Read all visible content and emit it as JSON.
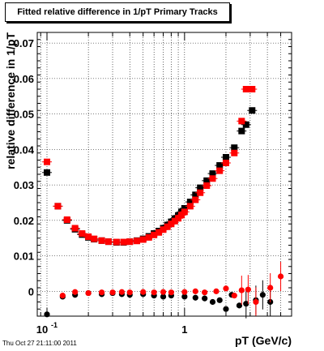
{
  "title": "Fitted relative difference in 1/pT  Primary Tracks",
  "timestamp": "Thu Oct 27 21:11:00 2011",
  "colors": {
    "black_series": "#000000",
    "red_series": "#ff0000",
    "frame": "#000000"
  },
  "chart_data": {
    "type": "scatter",
    "xlabel": "pT (GeV/c)",
    "ylabel": "relative difference in 1/pT",
    "x_scale": "log",
    "xlim": [
      0.085,
      6.0
    ],
    "ylim": [
      -0.007,
      0.073
    ],
    "grid": true,
    "x_tick_labels": [
      {
        "value": 0.1,
        "label": "10",
        "sup": "-1"
      },
      {
        "value": 1,
        "label": "1",
        "sup": ""
      }
    ],
    "y_tick_labels": [
      {
        "value": 0,
        "label": "0"
      },
      {
        "value": 0.01,
        "label": "0.01"
      },
      {
        "value": 0.02,
        "label": "0.02"
      },
      {
        "value": 0.03,
        "label": "0.03"
      },
      {
        "value": 0.04,
        "label": "0.04"
      },
      {
        "value": 0.05,
        "label": "0.05"
      },
      {
        "value": 0.06,
        "label": "0.06"
      },
      {
        "value": 0.07,
        "label": "0.07"
      }
    ],
    "series": [
      {
        "color": "#000000",
        "marker": "square",
        "points": [
          [
            0.1,
            0.0335
          ],
          [
            0.12,
            0.024
          ],
          [
            0.14,
            0.02
          ],
          [
            0.16,
            0.0175
          ],
          [
            0.18,
            0.016
          ],
          [
            0.2,
            0.0152
          ],
          [
            0.22,
            0.0147
          ],
          [
            0.25,
            0.0143
          ],
          [
            0.28,
            0.014
          ],
          [
            0.32,
            0.0138
          ],
          [
            0.36,
            0.0138
          ],
          [
            0.4,
            0.014
          ],
          [
            0.45,
            0.0143
          ],
          [
            0.5,
            0.0148
          ],
          [
            0.55,
            0.0155
          ],
          [
            0.6,
            0.0163
          ],
          [
            0.65,
            0.017
          ],
          [
            0.7,
            0.0178
          ],
          [
            0.75,
            0.0187
          ],
          [
            0.8,
            0.0196
          ],
          [
            0.85,
            0.0205
          ],
          [
            0.9,
            0.0214
          ],
          [
            0.95,
            0.0224
          ],
          [
            1.0,
            0.0234
          ],
          [
            1.1,
            0.0252
          ],
          [
            1.2,
            0.0272
          ],
          [
            1.3,
            0.0292
          ],
          [
            1.45,
            0.0312
          ],
          [
            1.6,
            0.0332
          ],
          [
            1.8,
            0.0355
          ],
          [
            2.0,
            0.0378
          ],
          [
            2.3,
            0.0405
          ],
          [
            2.6,
            0.0452
          ],
          [
            2.8,
            0.047
          ],
          [
            3.1,
            0.051
          ]
        ],
        "low_points": [
          [
            0.1,
            -0.0065
          ],
          [
            0.13,
            -0.0015
          ],
          [
            0.16,
            -0.001
          ],
          [
            0.2,
            -0.0005
          ],
          [
            0.25,
            -0.0008
          ],
          [
            0.3,
            -0.0005
          ],
          [
            0.35,
            -0.0008
          ],
          [
            0.4,
            -0.001
          ],
          [
            0.5,
            -0.0008
          ],
          [
            0.6,
            -0.0012
          ],
          [
            0.7,
            -0.0015
          ],
          [
            0.8,
            -0.0012
          ],
          [
            1.0,
            -0.0015
          ],
          [
            1.2,
            -0.0018
          ],
          [
            1.4,
            -0.002
          ],
          [
            1.6,
            -0.003
          ],
          [
            1.8,
            -0.0025
          ],
          [
            2.0,
            -0.005
          ],
          [
            2.2,
            -0.001
          ],
          [
            2.5,
            -0.004
          ],
          [
            2.8,
            -0.0035
          ],
          [
            3.3,
            -0.0025
          ],
          [
            3.7,
            -0.001
          ],
          [
            4.2,
            -0.003
          ]
        ]
      },
      {
        "color": "#ff0000",
        "marker": "square",
        "points": [
          [
            0.1,
            0.0365
          ],
          [
            0.12,
            0.024
          ],
          [
            0.14,
            0.0202
          ],
          [
            0.16,
            0.0178
          ],
          [
            0.18,
            0.0163
          ],
          [
            0.2,
            0.0154
          ],
          [
            0.22,
            0.0148
          ],
          [
            0.25,
            0.0143
          ],
          [
            0.28,
            0.014
          ],
          [
            0.32,
            0.0139
          ],
          [
            0.36,
            0.0139
          ],
          [
            0.4,
            0.014
          ],
          [
            0.45,
            0.0142
          ],
          [
            0.5,
            0.0146
          ],
          [
            0.55,
            0.0152
          ],
          [
            0.6,
            0.0159
          ],
          [
            0.65,
            0.0166
          ],
          [
            0.7,
            0.0174
          ],
          [
            0.75,
            0.0182
          ],
          [
            0.8,
            0.019
          ],
          [
            0.85,
            0.0198
          ],
          [
            0.9,
            0.0206
          ],
          [
            0.95,
            0.0215
          ],
          [
            1.0,
            0.0224
          ],
          [
            1.1,
            0.024
          ],
          [
            1.2,
            0.0258
          ],
          [
            1.3,
            0.0278
          ],
          [
            1.45,
            0.0298
          ],
          [
            1.6,
            0.0318
          ],
          [
            1.8,
            0.034
          ],
          [
            2.0,
            0.0362
          ],
          [
            2.3,
            0.039
          ],
          [
            2.6,
            0.048
          ],
          [
            2.8,
            0.057
          ],
          [
            3.1,
            0.057
          ]
        ],
        "low_points": [
          [
            0.13,
            -0.0012
          ],
          [
            0.16,
            -0.0002
          ],
          [
            0.2,
            -0.0005
          ],
          [
            0.25,
            -0.0003
          ],
          [
            0.3,
            -0.0003
          ],
          [
            0.35,
            -0.0002
          ],
          [
            0.4,
            -0.0003
          ],
          [
            0.5,
            -0.0002
          ],
          [
            0.6,
            -0.0003
          ],
          [
            0.7,
            -0.0002
          ],
          [
            0.8,
            -0.0003
          ],
          [
            1.0,
            -0.0002
          ],
          [
            1.2,
            0.0
          ],
          [
            1.4,
            -0.0003
          ],
          [
            1.7,
            0.0
          ],
          [
            2.0,
            0.0008
          ],
          [
            2.3,
            -0.0012
          ],
          [
            2.6,
            0.0003
          ],
          [
            2.9,
            0.0005
          ],
          [
            3.3,
            -0.003
          ],
          [
            4.2,
            0.001
          ],
          [
            5.0,
            0.0042
          ]
        ]
      }
    ]
  }
}
